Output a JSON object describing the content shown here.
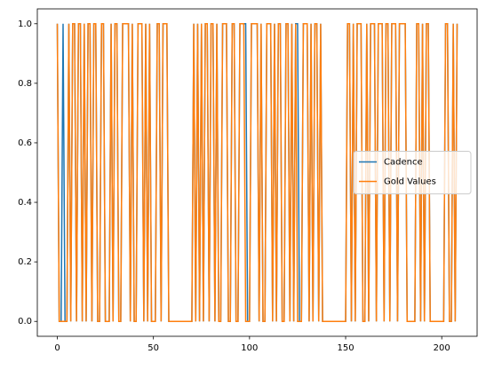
{
  "chart_data": {
    "type": "line",
    "x": [
      0,
      1,
      2,
      3,
      4,
      5,
      6,
      7,
      8,
      9,
      10,
      11,
      12,
      13,
      14,
      15,
      16,
      17,
      18,
      19,
      20,
      21,
      22,
      23,
      24,
      25,
      26,
      27,
      28,
      29,
      30,
      31,
      32,
      33,
      34,
      35,
      36,
      37,
      38,
      39,
      40,
      41,
      42,
      43,
      44,
      45,
      46,
      47,
      48,
      49,
      50,
      51,
      52,
      53,
      54,
      55,
      56,
      57,
      58,
      59,
      60,
      61,
      62,
      63,
      64,
      65,
      66,
      67,
      68,
      69,
      70,
      71,
      72,
      73,
      74,
      75,
      76,
      77,
      78,
      79,
      80,
      81,
      82,
      83,
      84,
      85,
      86,
      87,
      88,
      89,
      90,
      91,
      92,
      93,
      94,
      95,
      96,
      97,
      98,
      99,
      100,
      101,
      102,
      103,
      104,
      105,
      106,
      107,
      108,
      109,
      110,
      111,
      112,
      113,
      114,
      115,
      116,
      117,
      118,
      119,
      120,
      121,
      122,
      123,
      124,
      125,
      126,
      127,
      128,
      129,
      130,
      131,
      132,
      133,
      134,
      135,
      136,
      137,
      138,
      139,
      140,
      141,
      142,
      143,
      144,
      145,
      146,
      147,
      148,
      149,
      150,
      151,
      152,
      153,
      154,
      155,
      156,
      157,
      158,
      159,
      160,
      161,
      162,
      163,
      164,
      165,
      166,
      167,
      168,
      169,
      170,
      171,
      172,
      173,
      174,
      175,
      176,
      177,
      178,
      179,
      180,
      181,
      182,
      183,
      184,
      185,
      186,
      187,
      188,
      189,
      190,
      191,
      192,
      193,
      194,
      195,
      196,
      197,
      198,
      199,
      200,
      201,
      202,
      203,
      204,
      205,
      206,
      207,
      208
    ],
    "series": [
      {
        "name": "Cadence",
        "color": "#1f77b4",
        "values": [
          1,
          0,
          0,
          1,
          0,
          0,
          1,
          0,
          1,
          1,
          0,
          1,
          1,
          0,
          1,
          0,
          1,
          1,
          0,
          1,
          1,
          0,
          0,
          1,
          1,
          0,
          0,
          0,
          1,
          0,
          1,
          1,
          0,
          0,
          1,
          1,
          1,
          1,
          0,
          1,
          0,
          0,
          1,
          1,
          1,
          0,
          1,
          0,
          1,
          0,
          0,
          0,
          1,
          1,
          0,
          1,
          1,
          1,
          0,
          0,
          0,
          0,
          0,
          0,
          0,
          0,
          0,
          0,
          0,
          0,
          0,
          1,
          0,
          1,
          0,
          1,
          0,
          1,
          1,
          0,
          1,
          1,
          0,
          1,
          0,
          0,
          1,
          1,
          1,
          0,
          0,
          1,
          1,
          0,
          0,
          1,
          1,
          1,
          1,
          0,
          0,
          1,
          1,
          1,
          1,
          0,
          1,
          0,
          0,
          1,
          1,
          1,
          0,
          1,
          0,
          1,
          1,
          0,
          0,
          1,
          1,
          0,
          1,
          0,
          1,
          1,
          0,
          0,
          1,
          1,
          1,
          0,
          1,
          0,
          1,
          1,
          0,
          1,
          0,
          0,
          0,
          0,
          0,
          0,
          0,
          0,
          0,
          0,
          0,
          0,
          0,
          1,
          1,
          0,
          1,
          0,
          1,
          1,
          1,
          0,
          0,
          1,
          0,
          1,
          1,
          1,
          0,
          1,
          1,
          1,
          0,
          1,
          1,
          0,
          1,
          1,
          1,
          0,
          1,
          1,
          1,
          1,
          0,
          0,
          0,
          0,
          0,
          1,
          1,
          0,
          1,
          0,
          1,
          1,
          0,
          0,
          0,
          0,
          0,
          0,
          0,
          0,
          1,
          1,
          0,
          0,
          1,
          0,
          1
        ]
      },
      {
        "name": "Gold Values",
        "color": "#ff7f0e",
        "values": [
          1,
          0,
          0,
          0,
          0,
          0,
          1,
          0,
          1,
          1,
          0,
          1,
          1,
          0,
          1,
          0,
          1,
          1,
          0,
          1,
          1,
          0,
          0,
          1,
          1,
          0,
          0,
          0,
          1,
          0,
          1,
          1,
          0,
          0,
          1,
          1,
          1,
          1,
          0,
          1,
          0,
          0,
          1,
          1,
          1,
          0,
          1,
          0,
          1,
          0,
          0,
          0,
          1,
          1,
          0,
          1,
          1,
          1,
          0,
          0,
          0,
          0,
          0,
          0,
          0,
          0,
          0,
          0,
          0,
          0,
          0,
          1,
          0,
          1,
          0,
          1,
          0,
          1,
          1,
          0,
          1,
          1,
          0,
          1,
          0,
          0,
          1,
          1,
          1,
          0,
          0,
          1,
          1,
          0,
          0,
          1,
          1,
          1,
          0,
          0,
          0,
          1,
          1,
          1,
          1,
          0,
          1,
          0,
          0,
          1,
          1,
          1,
          0,
          1,
          0,
          1,
          1,
          0,
          0,
          1,
          1,
          0,
          1,
          0,
          1,
          0,
          0,
          0,
          1,
          1,
          1,
          0,
          1,
          0,
          1,
          1,
          0,
          1,
          0,
          0,
          0,
          0,
          0,
          0,
          0,
          0,
          0,
          0,
          0,
          0,
          0,
          1,
          1,
          0,
          1,
          0,
          1,
          1,
          1,
          0,
          0,
          1,
          0,
          1,
          1,
          1,
          0,
          1,
          1,
          1,
          0,
          1,
          1,
          0,
          1,
          1,
          1,
          0,
          1,
          1,
          1,
          1,
          0,
          0,
          0,
          0,
          0,
          1,
          1,
          0,
          1,
          0,
          1,
          1,
          0,
          0,
          0,
          0,
          0,
          0,
          0,
          0,
          1,
          1,
          0,
          0,
          1,
          0,
          1
        ]
      }
    ],
    "xlim": [
      -10.4,
      218.4
    ],
    "xticks": [
      0,
      50,
      100,
      150,
      200
    ],
    "ylim": [
      -0.05,
      1.05
    ],
    "yticks": [
      {
        "value": 0,
        "label": "0.0"
      },
      {
        "value": 0.2,
        "label": "0.2"
      },
      {
        "value": 0.4,
        "label": "0.4"
      },
      {
        "value": 0.6,
        "label": "0.6"
      },
      {
        "value": 0.8,
        "label": "0.8"
      },
      {
        "value": 1,
        "label": "1.0"
      }
    ],
    "legend": "center right"
  }
}
